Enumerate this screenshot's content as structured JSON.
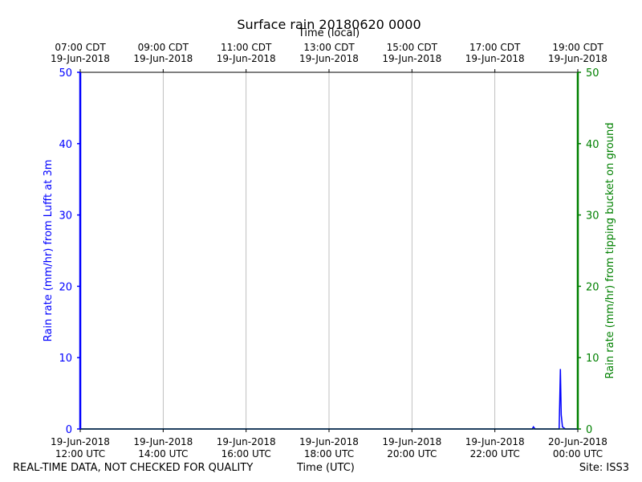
{
  "chart_data": {
    "type": "line",
    "title": "Surface rain 20180620 0000",
    "top_axis_label": "Time (local)",
    "bottom_axis_label": "Time (UTC)",
    "ylabel_left": "Rain rate (mm/hr) from Lufft at 3m",
    "ylabel_right": "Rain rate (mm/hr) from tipping bucket on ground",
    "ylim": [
      0,
      50
    ],
    "xlim_hours_utc": [
      12,
      24
    ],
    "y_ticks": [
      "0",
      "10",
      "20",
      "30",
      "40",
      "50"
    ],
    "x_ticks_utc": [
      {
        "hour": 12,
        "date": "19-Jun-2018",
        "time": "12:00 UTC"
      },
      {
        "hour": 14,
        "date": "19-Jun-2018",
        "time": "14:00 UTC"
      },
      {
        "hour": 16,
        "date": "19-Jun-2018",
        "time": "16:00 UTC"
      },
      {
        "hour": 18,
        "date": "19-Jun-2018",
        "time": "18:00 UTC"
      },
      {
        "hour": 20,
        "date": "19-Jun-2018",
        "time": "20:00 UTC"
      },
      {
        "hour": 22,
        "date": "19-Jun-2018",
        "time": "22:00 UTC"
      },
      {
        "hour": 24,
        "date": "20-Jun-2018",
        "time": "00:00 UTC"
      }
    ],
    "x_ticks_local": [
      {
        "hour": 12,
        "time": "07:00 CDT",
        "date": "19-Jun-2018"
      },
      {
        "hour": 14,
        "time": "09:00 CDT",
        "date": "19-Jun-2018"
      },
      {
        "hour": 16,
        "time": "11:00 CDT",
        "date": "19-Jun-2018"
      },
      {
        "hour": 18,
        "time": "13:00 CDT",
        "date": "19-Jun-2018"
      },
      {
        "hour": 20,
        "time": "15:00 CDT",
        "date": "19-Jun-2018"
      },
      {
        "hour": 22,
        "time": "17:00 CDT",
        "date": "19-Jun-2018"
      },
      {
        "hour": 24,
        "time": "19:00 CDT",
        "date": "19-Jun-2018"
      }
    ],
    "grid": true,
    "series": [
      {
        "axis": "left",
        "color": "#0000ff",
        "points": [
          [
            12.0,
            0
          ],
          [
            22.9,
            0
          ],
          [
            22.93,
            0.3
          ],
          [
            22.97,
            0
          ],
          [
            23.55,
            0
          ],
          [
            23.58,
            8.4
          ],
          [
            23.6,
            2.0
          ],
          [
            23.63,
            0.3
          ],
          [
            23.7,
            0
          ],
          [
            24.0,
            0
          ]
        ]
      },
      {
        "axis": "right",
        "color": "#008080",
        "points": [
          [
            12.0,
            0
          ],
          [
            24.0,
            0
          ]
        ]
      }
    ]
  },
  "footer": {
    "left": "REAL-TIME DATA, NOT CHECKED FOR QUALITY",
    "right": "Site: ISS3"
  }
}
